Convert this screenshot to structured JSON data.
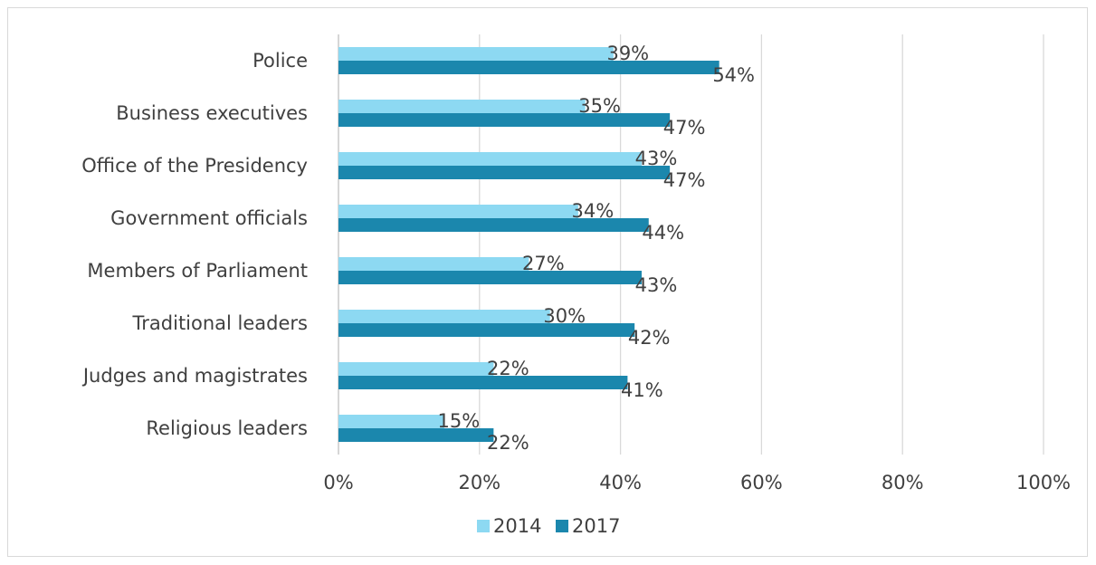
{
  "chart_data": {
    "type": "bar",
    "orientation": "horizontal",
    "categories": [
      "Police",
      "Business executives",
      "Office of the Presidency",
      "Government officials",
      "Members of Parliament",
      "Traditional leaders",
      "Judges and magistrates",
      "Religious leaders"
    ],
    "series": [
      {
        "name": "2014",
        "color": "#8dd9f2",
        "values": [
          39,
          35,
          43,
          34,
          27,
          30,
          22,
          15
        ],
        "labels": [
          "39%",
          "35%",
          "43%",
          "34%",
          "27%",
          "30%",
          "22%",
          "15%"
        ]
      },
      {
        "name": "2017",
        "color": "#1b87ad",
        "values": [
          54,
          47,
          47,
          44,
          43,
          42,
          41,
          22
        ],
        "labels": [
          "54%",
          "47%",
          "47%",
          "44%",
          "43%",
          "42%",
          "41%",
          "22%"
        ]
      }
    ],
    "xlim": [
      0,
      100
    ],
    "xticks": [
      0,
      20,
      40,
      60,
      80,
      100
    ],
    "xtick_labels": [
      "0%",
      "20%",
      "40%",
      "60%",
      "80%",
      "100%"
    ],
    "grid": true,
    "legend_position": "bottom"
  }
}
